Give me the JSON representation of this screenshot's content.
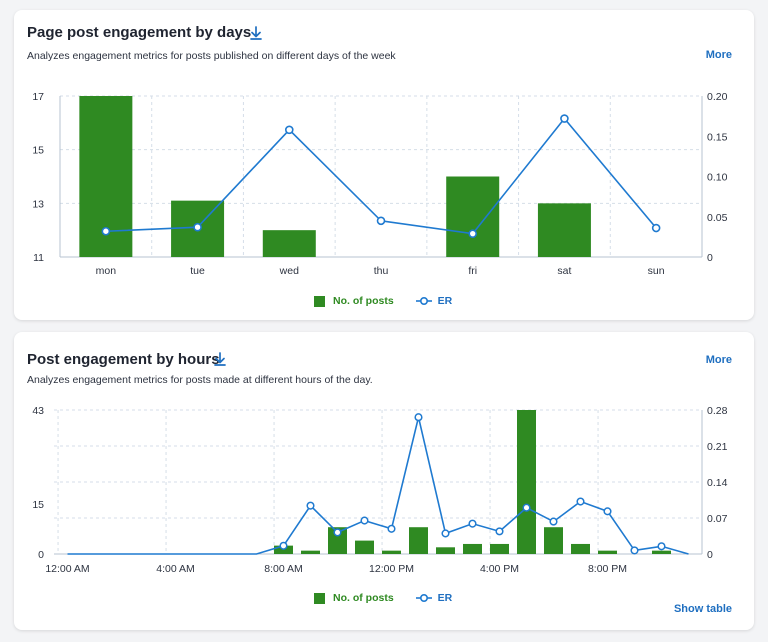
{
  "colors": {
    "bar": "#2f8a22",
    "line": "#1f7ad0",
    "accent": "#1f6fc0",
    "grid": "#d5dee8"
  },
  "card_days": {
    "title": "Page post engagement by days",
    "subtitle": "Analyzes engagement metrics for posts published on different days of the week",
    "more_label": "More",
    "download_icon": "download-icon",
    "legend": {
      "bars": "No. of posts",
      "line": "ER"
    }
  },
  "card_hours": {
    "title": "Post engagement by hours",
    "subtitle": "Analyzes engagement metrics for posts made at different hours of the day.",
    "more_label": "More",
    "download_icon": "download-icon",
    "legend": {
      "bars": "No. of posts",
      "line": "ER"
    },
    "show_table_label": "Show table"
  },
  "chart_data": [
    {
      "type": "bar",
      "categories": [
        "mon",
        "tue",
        "wed",
        "thu",
        "fri",
        "sat",
        "sun"
      ],
      "series": [
        {
          "name": "No. of posts",
          "type": "bar",
          "axis": "left",
          "values": [
            17,
            13.1,
            12,
            null,
            14,
            13,
            null
          ]
        },
        {
          "name": "ER",
          "type": "line",
          "axis": "right",
          "values": [
            0.032,
            0.037,
            0.158,
            0.045,
            0.029,
            0.172,
            0.036
          ]
        }
      ],
      "yticks_left": [
        "11",
        "13",
        "15",
        "17"
      ],
      "yticks_right": [
        "0",
        "0.05",
        "0.10",
        "0.15",
        "0.20"
      ],
      "ylim_left": [
        11,
        17
      ],
      "ylim_right": [
        0,
        0.2
      ],
      "grid": true,
      "legend": "bottom-center"
    },
    {
      "type": "bar",
      "categories": [
        "0",
        "1",
        "2",
        "3",
        "4",
        "5",
        "6",
        "7",
        "8",
        "9",
        "10",
        "11",
        "12",
        "13",
        "14",
        "15",
        "16",
        "17",
        "18",
        "19",
        "20",
        "21",
        "22",
        "23"
      ],
      "xtick_labels": [
        {
          "hour": 0,
          "label": "12:00 AM"
        },
        {
          "hour": 4,
          "label": "4:00 AM"
        },
        {
          "hour": 8,
          "label": "8:00 AM"
        },
        {
          "hour": 12,
          "label": "12:00 PM"
        },
        {
          "hour": 16,
          "label": "4:00 PM"
        },
        {
          "hour": 20,
          "label": "8:00 PM"
        }
      ],
      "series": [
        {
          "name": "No. of posts",
          "type": "bar",
          "axis": "left",
          "values": [
            0,
            0,
            0,
            0,
            0,
            0,
            0,
            0,
            2.5,
            1,
            8,
            4,
            1,
            8,
            2,
            3,
            3,
            43,
            8,
            3,
            1,
            0,
            1,
            0
          ]
        },
        {
          "name": "ER",
          "type": "line",
          "axis": "right",
          "values": [
            0,
            0,
            0,
            0,
            0,
            0,
            0,
            0,
            0.016,
            0.094,
            0.042,
            0.065,
            0.049,
            0.266,
            0.04,
            0.059,
            0.044,
            0.09,
            0.063,
            0.102,
            0.083,
            0.007,
            0.015,
            0
          ]
        }
      ],
      "yticks_left": [
        "0",
        "15",
        "43"
      ],
      "yticks_left_values": [
        0,
        15,
        43
      ],
      "yticks_right": [
        "0",
        "0.07",
        "0.14",
        "0.21",
        "0.28"
      ],
      "ylim_left": [
        0,
        43
      ],
      "ylim_right": [
        0,
        0.28
      ],
      "grid": true,
      "legend": "bottom-center"
    }
  ]
}
